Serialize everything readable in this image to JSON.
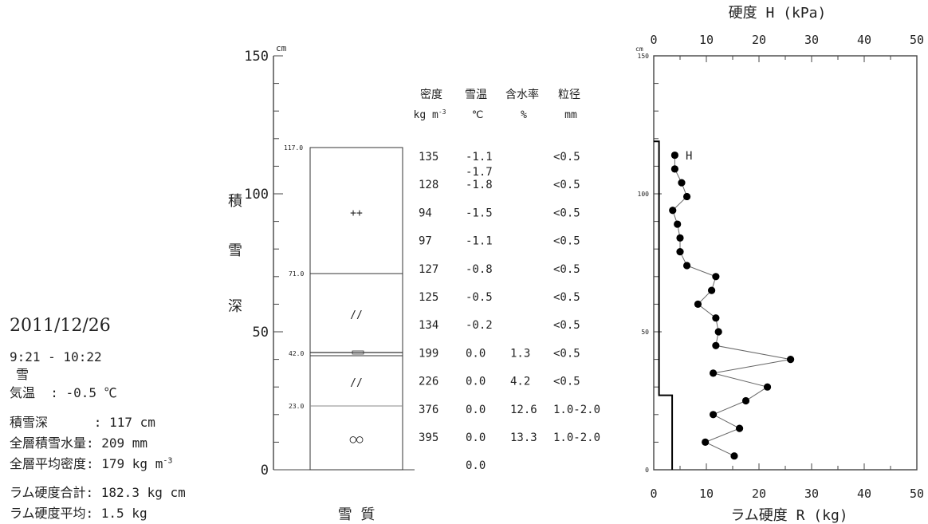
{
  "info": {
    "date": "2011/12/26",
    "time": "9:21 - 10:22",
    "weather": "雪",
    "air_temp": "気温  : -0.5 ℃",
    "snow_depth": "積雪深      : 117 cm",
    "swe": "全層積雪水量: 209 mm",
    "mean_density_label": "全層平均密度: 179 kg m",
    "mean_density_exp": "-3",
    "ram_total": "ラム硬度合計: 182.3 kg cm",
    "ram_mean": "ラム硬度平均: 1.5 kg"
  },
  "profile": {
    "left_axis_label": [
      "積",
      "雪",
      "深"
    ],
    "unit_cm": "cm",
    "y_ticks": [
      "150",
      "100",
      "50",
      "0"
    ],
    "bottom_label": "雪 質",
    "layer_boundaries": [
      {
        "height": 117.0,
        "label": "117.0"
      },
      {
        "height": 71.0,
        "label": "71.0"
      },
      {
        "height": 42.0,
        "label": "42.0"
      },
      {
        "height": 23.0,
        "label": "23.0"
      }
    ],
    "grain_symbols": [
      {
        "height": 93,
        "symbol": "++"
      },
      {
        "height": 56,
        "symbol": "//"
      },
      {
        "height": 31,
        "symbol": "//"
      },
      {
        "height": 11,
        "symbol": "○○"
      }
    ]
  },
  "table": {
    "headers": [
      "密度",
      "雪温",
      "含水率",
      "粒径"
    ],
    "units": [
      "kg m",
      "℃",
      "%",
      "mm"
    ],
    "units_exp": "-3",
    "rows": [
      {
        "density": "135",
        "temp": "-1.1",
        "temp2": "-1.7",
        "water": "",
        "grain": "<0.5"
      },
      {
        "density": "128",
        "temp": "-1.8",
        "water": "",
        "grain": "<0.5"
      },
      {
        "density": "94",
        "temp": "-1.5",
        "water": "",
        "grain": "<0.5"
      },
      {
        "density": "97",
        "temp": "-1.1",
        "water": "",
        "grain": "<0.5"
      },
      {
        "density": "127",
        "temp": "-0.8",
        "water": "",
        "grain": "<0.5"
      },
      {
        "density": "125",
        "temp": "-0.5",
        "water": "",
        "grain": "<0.5"
      },
      {
        "density": "134",
        "temp": "-0.2",
        "water": "",
        "grain": "<0.5"
      },
      {
        "density": "199",
        "temp": "0.0",
        "water": "1.3",
        "grain": "<0.5"
      },
      {
        "density": "226",
        "temp": "0.0",
        "water": "4.2",
        "grain": "<0.5"
      },
      {
        "density": "376",
        "temp": "0.0",
        "water": "12.6",
        "grain": "1.0-2.0"
      },
      {
        "density": "395",
        "temp": "0.0",
        "water": "13.3",
        "grain": "1.0-2.0"
      },
      {
        "density": "",
        "temp": "0.0",
        "water": "",
        "grain": ""
      }
    ]
  },
  "chart_data": {
    "type": "line",
    "title": "硬度  H (kPa)",
    "xlabel": "ラム硬度  R (kg)",
    "ylabel": "cm",
    "x_ticks_top": [
      "0",
      "10",
      "20",
      "30",
      "40",
      "50"
    ],
    "x_ticks_bottom": [
      "0",
      "10",
      "20",
      "30",
      "40",
      "50"
    ],
    "y_ticks": [
      "150",
      "100",
      "50",
      "0"
    ],
    "xlim": [
      0,
      50
    ],
    "ylim": [
      0,
      150
    ],
    "series_label": "H",
    "hardness_points": [
      {
        "x": 4.0,
        "y": 114
      },
      {
        "x": 4.0,
        "y": 109
      },
      {
        "x": 5.3,
        "y": 104
      },
      {
        "x": 6.3,
        "y": 99
      },
      {
        "x": 3.6,
        "y": 94
      },
      {
        "x": 4.5,
        "y": 89
      },
      {
        "x": 5.0,
        "y": 84
      },
      {
        "x": 5.0,
        "y": 79
      },
      {
        "x": 6.3,
        "y": 74
      },
      {
        "x": 11.8,
        "y": 70
      },
      {
        "x": 11.0,
        "y": 65
      },
      {
        "x": 8.4,
        "y": 60
      },
      {
        "x": 11.8,
        "y": 55
      },
      {
        "x": 12.3,
        "y": 50
      },
      {
        "x": 11.8,
        "y": 45
      },
      {
        "x": 26.0,
        "y": 40
      },
      {
        "x": 11.3,
        "y": 35
      },
      {
        "x": 21.6,
        "y": 30
      },
      {
        "x": 17.5,
        "y": 25
      },
      {
        "x": 11.3,
        "y": 20
      },
      {
        "x": 16.3,
        "y": 15
      },
      {
        "x": 9.8,
        "y": 10
      },
      {
        "x": 15.3,
        "y": 5
      }
    ],
    "ram_steps": [
      {
        "x": 1.0,
        "y_top": 119,
        "y_bottom": 27
      },
      {
        "x": 3.5,
        "y_top": 27,
        "y_bottom": 0
      }
    ]
  }
}
